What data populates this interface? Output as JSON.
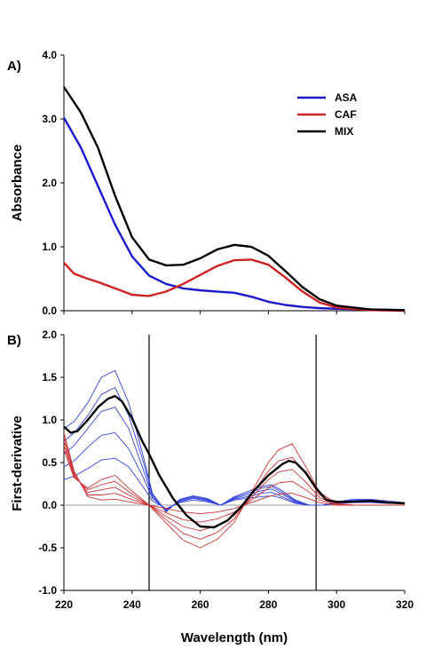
{
  "chart_data": [
    {
      "type": "line",
      "panel_label": "A)",
      "xlabel": "",
      "ylabel": "Absorbance",
      "xlim": [
        220,
        320
      ],
      "ylim": [
        0.0,
        4.0
      ],
      "yticks": [
        "0.0",
        "1.0",
        "2.0",
        "3.0",
        "4.0"
      ],
      "legend": {
        "placement": "top-right"
      },
      "series": [
        {
          "name": "ASA",
          "color": "#1a1acc",
          "x": [
            220,
            225,
            230,
            235,
            240,
            245,
            250,
            255,
            260,
            265,
            270,
            275,
            280,
            285,
            290,
            295,
            300,
            310,
            320
          ],
          "y": [
            3.02,
            2.55,
            1.95,
            1.35,
            0.85,
            0.55,
            0.42,
            0.35,
            0.32,
            0.3,
            0.28,
            0.22,
            0.14,
            0.09,
            0.06,
            0.04,
            0.03,
            0.02,
            0.01
          ]
        },
        {
          "name": "CAF",
          "color": "#cc2222",
          "x": [
            220,
            223,
            227,
            230,
            235,
            240,
            245,
            250,
            255,
            260,
            265,
            270,
            275,
            280,
            285,
            290,
            295,
            300,
            310,
            320
          ],
          "y": [
            0.75,
            0.58,
            0.5,
            0.45,
            0.35,
            0.25,
            0.23,
            0.3,
            0.42,
            0.56,
            0.7,
            0.79,
            0.8,
            0.72,
            0.52,
            0.3,
            0.13,
            0.05,
            0.01,
            0.0
          ]
        },
        {
          "name": "MIX",
          "color": "#000000",
          "x": [
            220,
            225,
            230,
            235,
            240,
            245,
            250,
            255,
            260,
            265,
            270,
            275,
            280,
            285,
            290,
            295,
            300,
            310,
            320
          ],
          "y": [
            3.5,
            3.1,
            2.55,
            1.8,
            1.15,
            0.8,
            0.71,
            0.72,
            0.82,
            0.96,
            1.03,
            1.0,
            0.86,
            0.62,
            0.37,
            0.18,
            0.08,
            0.02,
            0.01
          ]
        }
      ]
    },
    {
      "type": "line",
      "panel_label": "B)",
      "xlabel": "Wavelength (nm)",
      "ylabel": "First-derivative",
      "xlim": [
        220,
        320
      ],
      "ylim": [
        -1.0,
        2.0
      ],
      "xticks": [
        "220",
        "240",
        "260",
        "280",
        "300",
        "320"
      ],
      "yticks": [
        "-1.0",
        "-0.5",
        "0.0",
        "0.5",
        "1.0",
        "1.5",
        "2.0"
      ],
      "vlines": [
        245,
        294
      ],
      "zero_line": true,
      "series": [
        {
          "color": "#3344dd",
          "x": [
            220,
            223,
            227,
            231,
            235,
            239,
            243,
            246,
            250,
            254,
            258,
            262,
            266,
            270,
            274,
            278,
            281,
            284,
            288,
            292,
            296,
            300,
            305,
            310,
            315,
            320
          ],
          "y": [
            0.3,
            0.34,
            0.43,
            0.53,
            0.55,
            0.45,
            0.23,
            0.05,
            -0.04,
            0.03,
            0.06,
            0.04,
            0.0,
            0.06,
            0.08,
            0.1,
            0.11,
            0.08,
            0.02,
            0.0,
            0.0,
            0.02,
            0.03,
            0.03,
            0.02,
            0.02
          ]
        },
        {
          "color": "#3344dd",
          "x": [
            220,
            223,
            227,
            231,
            235,
            239,
            243,
            246,
            250,
            254,
            258,
            262,
            266,
            270,
            274,
            278,
            281,
            284,
            288,
            292,
            296,
            300,
            305,
            310,
            315,
            320
          ],
          "y": [
            0.45,
            0.52,
            0.68,
            0.82,
            0.85,
            0.66,
            0.35,
            0.08,
            -0.05,
            0.04,
            0.08,
            0.05,
            0.0,
            0.07,
            0.1,
            0.14,
            0.15,
            0.1,
            0.03,
            0.0,
            0.0,
            0.03,
            0.04,
            0.04,
            0.03,
            0.02
          ]
        },
        {
          "color": "#3344dd",
          "x": [
            220,
            223,
            227,
            231,
            235,
            239,
            243,
            246,
            250,
            254,
            258,
            262,
            266,
            270,
            274,
            278,
            281,
            284,
            288,
            292,
            296,
            300,
            305,
            310,
            315,
            320
          ],
          "y": [
            0.6,
            0.7,
            0.9,
            1.1,
            1.15,
            0.9,
            0.45,
            0.1,
            -0.06,
            0.05,
            0.09,
            0.06,
            0.0,
            0.08,
            0.12,
            0.17,
            0.19,
            0.13,
            0.04,
            0.0,
            0.0,
            0.03,
            0.05,
            0.05,
            0.03,
            0.02
          ]
        },
        {
          "color": "#3344dd",
          "x": [
            220,
            223,
            227,
            231,
            235,
            239,
            243,
            246,
            250,
            254,
            258,
            262,
            266,
            270,
            274,
            278,
            281,
            284,
            288,
            292,
            296,
            300,
            305,
            310,
            315,
            320
          ],
          "y": [
            0.75,
            0.85,
            1.05,
            1.3,
            1.38,
            1.05,
            0.55,
            0.12,
            -0.07,
            0.06,
            0.1,
            0.07,
            0.0,
            0.09,
            0.14,
            0.2,
            0.22,
            0.15,
            0.05,
            0.0,
            0.0,
            0.04,
            0.06,
            0.06,
            0.04,
            0.03
          ]
        },
        {
          "color": "#3344dd",
          "x": [
            220,
            223,
            227,
            231,
            235,
            239,
            243,
            246,
            250,
            254,
            258,
            262,
            266,
            270,
            274,
            278,
            281,
            284,
            288,
            292,
            296,
            300,
            305,
            310,
            315,
            320
          ],
          "y": [
            0.9,
            0.98,
            1.2,
            1.5,
            1.58,
            1.2,
            0.62,
            0.14,
            -0.08,
            0.07,
            0.11,
            0.08,
            0.0,
            0.1,
            0.16,
            0.22,
            0.24,
            0.17,
            0.06,
            0.0,
            0.0,
            0.04,
            0.07,
            0.07,
            0.05,
            0.03
          ]
        },
        {
          "color": "#cc3333",
          "x": [
            220,
            223,
            227,
            231,
            235,
            239,
            245,
            250,
            255,
            260,
            265,
            270,
            275,
            280,
            283,
            287,
            291,
            295,
            300,
            305,
            310,
            320
          ],
          "y": [
            0.85,
            0.4,
            0.1,
            0.06,
            0.07,
            0.04,
            0.0,
            -0.04,
            -0.08,
            -0.1,
            -0.08,
            -0.04,
            0.03,
            0.1,
            0.13,
            0.14,
            0.09,
            0.03,
            0.0,
            0.0,
            0.0,
            0.0
          ]
        },
        {
          "color": "#cc3333",
          "x": [
            220,
            223,
            227,
            231,
            235,
            239,
            245,
            250,
            255,
            260,
            265,
            270,
            275,
            280,
            283,
            287,
            291,
            295,
            300,
            305,
            310,
            320
          ],
          "y": [
            0.8,
            0.38,
            0.12,
            0.12,
            0.14,
            0.08,
            0.0,
            -0.09,
            -0.17,
            -0.2,
            -0.16,
            -0.08,
            0.06,
            0.2,
            0.26,
            0.28,
            0.18,
            0.06,
            0.01,
            0.0,
            0.0,
            0.0
          ]
        },
        {
          "color": "#cc3333",
          "x": [
            220,
            223,
            227,
            231,
            235,
            239,
            245,
            250,
            255,
            260,
            265,
            270,
            275,
            280,
            283,
            287,
            291,
            295,
            300,
            305,
            310,
            320
          ],
          "y": [
            0.75,
            0.36,
            0.15,
            0.18,
            0.21,
            0.12,
            0.0,
            -0.13,
            -0.25,
            -0.3,
            -0.24,
            -0.12,
            0.09,
            0.3,
            0.39,
            0.42,
            0.27,
            0.09,
            0.01,
            0.0,
            0.0,
            0.0
          ]
        },
        {
          "color": "#cc3333",
          "x": [
            220,
            223,
            227,
            231,
            235,
            239,
            245,
            250,
            255,
            260,
            265,
            270,
            275,
            280,
            283,
            287,
            291,
            295,
            300,
            305,
            310,
            320
          ],
          "y": [
            0.7,
            0.34,
            0.18,
            0.24,
            0.28,
            0.16,
            0.0,
            -0.17,
            -0.33,
            -0.4,
            -0.32,
            -0.16,
            0.12,
            0.4,
            0.52,
            0.56,
            0.36,
            0.12,
            0.02,
            0.0,
            0.0,
            0.0
          ]
        },
        {
          "color": "#cc3333",
          "x": [
            220,
            223,
            227,
            231,
            235,
            239,
            245,
            250,
            255,
            260,
            265,
            270,
            275,
            280,
            283,
            287,
            291,
            295,
            300,
            305,
            310,
            320
          ],
          "y": [
            0.65,
            0.32,
            0.2,
            0.3,
            0.35,
            0.2,
            0.0,
            -0.21,
            -0.41,
            -0.5,
            -0.4,
            -0.2,
            0.15,
            0.5,
            0.65,
            0.72,
            0.45,
            0.15,
            0.02,
            0.0,
            0.0,
            0.0
          ]
        },
        {
          "color": "#000000",
          "emphasis": true,
          "x": [
            220,
            222,
            224,
            227,
            230,
            233,
            235,
            237,
            240,
            243,
            245,
            248,
            252,
            256,
            260,
            264,
            268,
            272,
            276,
            280,
            284,
            286,
            288,
            291,
            294,
            297,
            300,
            305,
            310,
            315,
            320
          ],
          "y": [
            0.92,
            0.85,
            0.87,
            1.0,
            1.15,
            1.25,
            1.28,
            1.22,
            1.02,
            0.75,
            0.6,
            0.35,
            0.08,
            -0.12,
            -0.25,
            -0.26,
            -0.18,
            -0.02,
            0.18,
            0.35,
            0.48,
            0.52,
            0.5,
            0.38,
            0.2,
            0.06,
            0.04,
            0.04,
            0.05,
            0.03,
            0.02
          ]
        }
      ]
    }
  ],
  "legend": [
    {
      "label": "ASA",
      "color": "#1a1acc"
    },
    {
      "label": "CAF",
      "color": "#cc2222"
    },
    {
      "label": "MIX",
      "color": "#000000"
    }
  ]
}
